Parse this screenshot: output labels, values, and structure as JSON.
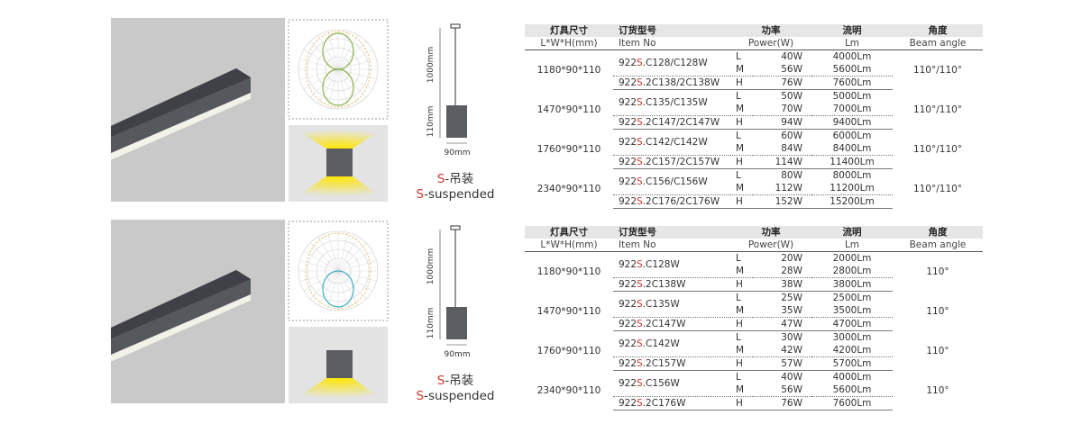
{
  "sections": [
    {
      "dims": {
        "height": "1000mm",
        "drop": "110mm",
        "width": "90mm"
      },
      "caption_cn": {
        "mark": "S",
        "text": "-吊装"
      },
      "caption_en": {
        "mark": "S",
        "text": "-suspended"
      },
      "table": {
        "header_cn": [
          "灯具尺寸",
          "订货型号",
          "功率",
          "流明",
          "角度"
        ],
        "header_en": [
          "L*W*H(mm)",
          "Item No",
          "Power(W)",
          "Lm",
          "Beam angle"
        ],
        "groups": [
          {
            "size": "1180*90*110",
            "angle": "110°/110°",
            "items": [
              {
                "prefix": "922",
                "mark": "S",
                "model": ".C128/C128W"
              },
              {
                "prefix": "922",
                "mark": "S",
                "model": ".2C138/2C138W"
              }
            ],
            "rows": [
              [
                "L",
                "40W",
                "4000Lm"
              ],
              [
                "M",
                "56W",
                "5600Lm"
              ],
              [
                "H",
                "76W",
                "7600Lm"
              ]
            ]
          },
          {
            "size": "1470*90*110",
            "angle": "110°/110°",
            "items": [
              {
                "prefix": "922",
                "mark": "S",
                "model": ".C135/C135W"
              },
              {
                "prefix": "922",
                "mark": "S",
                "model": ".2C147/2C147W"
              }
            ],
            "rows": [
              [
                "L",
                "50W",
                "5000Lm"
              ],
              [
                "M",
                "70W",
                "7000Lm"
              ],
              [
                "H",
                "94W",
                "9400Lm"
              ]
            ]
          },
          {
            "size": "1760*90*110",
            "angle": "110°/110°",
            "items": [
              {
                "prefix": "922",
                "mark": "S",
                "model": ".C142/C142W"
              },
              {
                "prefix": "922",
                "mark": "S",
                "model": ".2C157/2C157W"
              }
            ],
            "rows": [
              [
                "L",
                "60W",
                "6000Lm"
              ],
              [
                "M",
                "84W",
                "8400Lm"
              ],
              [
                "H",
                "114W",
                "11400Lm"
              ]
            ]
          },
          {
            "size": "2340*90*110",
            "angle": "110°/110°",
            "items": [
              {
                "prefix": "922",
                "mark": "S",
                "model": ".C156/C156W"
              },
              {
                "prefix": "922",
                "mark": "S",
                "model": ".2C176/2C176W"
              }
            ],
            "rows": [
              [
                "L",
                "80W",
                "8000Lm"
              ],
              [
                "M",
                "112W",
                "11200Lm"
              ],
              [
                "H",
                "152W",
                "15200Lm"
              ]
            ]
          }
        ]
      }
    },
    {
      "dims": {
        "height": "1000mm",
        "drop": "110mm",
        "width": "90mm"
      },
      "caption_cn": {
        "mark": "S",
        "text": "-吊装"
      },
      "caption_en": {
        "mark": "S",
        "text": "-suspended"
      },
      "table": {
        "header_cn": [
          "灯具尺寸",
          "订货型号",
          "功率",
          "流明",
          "角度"
        ],
        "header_en": [
          "L*W*H(mm)",
          "Item No",
          "Power(W)",
          "Lm",
          "Beam angle"
        ],
        "groups": [
          {
            "size": "1180*90*110",
            "angle": "110°",
            "items": [
              {
                "prefix": "922",
                "mark": "S",
                "model": ".C128W"
              },
              {
                "prefix": "922",
                "mark": "S",
                "model": ".2C138W"
              }
            ],
            "rows": [
              [
                "L",
                "20W",
                "2000Lm"
              ],
              [
                "M",
                "28W",
                "2800Lm"
              ],
              [
                "H",
                "38W",
                "3800Lm"
              ]
            ]
          },
          {
            "size": "1470*90*110",
            "angle": "110°",
            "items": [
              {
                "prefix": "922",
                "mark": "S",
                "model": ".C135W"
              },
              {
                "prefix": "922",
                "mark": "S",
                "model": ".2C147W"
              }
            ],
            "rows": [
              [
                "L",
                "25W",
                "2500Lm"
              ],
              [
                "M",
                "35W",
                "3500Lm"
              ],
              [
                "H",
                "47W",
                "4700Lm"
              ]
            ]
          },
          {
            "size": "1760*90*110",
            "angle": "110°",
            "items": [
              {
                "prefix": "922",
                "mark": "S",
                "model": ".C142W"
              },
              {
                "prefix": "922",
                "mark": "S",
                "model": ".2C157W"
              }
            ],
            "rows": [
              [
                "L",
                "30W",
                "3000Lm"
              ],
              [
                "M",
                "42W",
                "4200Lm"
              ],
              [
                "H",
                "57W",
                "5700Lm"
              ]
            ]
          },
          {
            "size": "2340*90*110",
            "angle": "110°",
            "items": [
              {
                "prefix": "922",
                "mark": "S",
                "model": ".C156W"
              },
              {
                "prefix": "922",
                "mark": "S",
                "model": ".2C176W"
              }
            ],
            "rows": [
              [
                "L",
                "40W",
                "4000Lm"
              ],
              [
                "M",
                "56W",
                "5600Lm"
              ],
              [
                "H",
                "76W",
                "7600Lm"
              ]
            ]
          }
        ]
      }
    }
  ]
}
